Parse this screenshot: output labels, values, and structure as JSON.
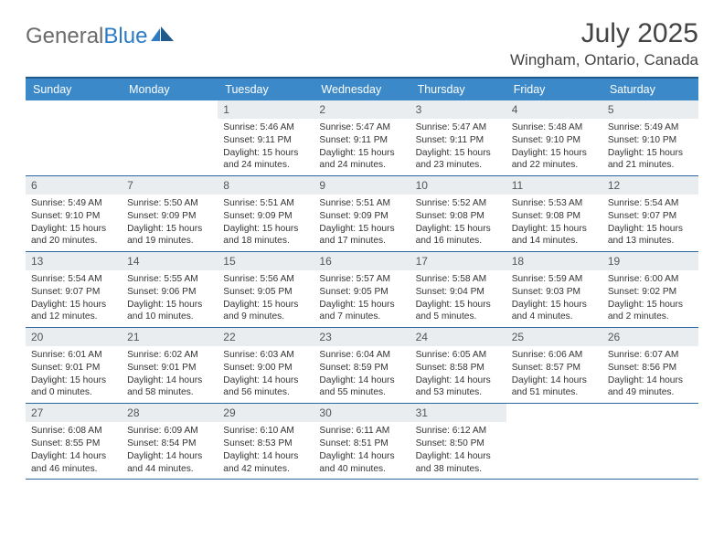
{
  "logo": {
    "text1": "General",
    "text2": "Blue"
  },
  "title": "July 2025",
  "location": "Wingham, Ontario, Canada",
  "colors": {
    "header_bg": "#3b89c9",
    "header_border": "#1f5a8a",
    "row_border": "#2a66a0",
    "daynum_bg": "#e9edef",
    "logo_gray": "#6b6b6b",
    "logo_blue": "#2c7bc4"
  },
  "daysOfWeek": [
    "Sunday",
    "Monday",
    "Tuesday",
    "Wednesday",
    "Thursday",
    "Friday",
    "Saturday"
  ],
  "weeks": [
    [
      {
        "empty": true
      },
      {
        "empty": true
      },
      {
        "n": "1",
        "sr": "Sunrise: 5:46 AM",
        "ss": "Sunset: 9:11 PM",
        "dl": "Daylight: 15 hours and 24 minutes."
      },
      {
        "n": "2",
        "sr": "Sunrise: 5:47 AM",
        "ss": "Sunset: 9:11 PM",
        "dl": "Daylight: 15 hours and 24 minutes."
      },
      {
        "n": "3",
        "sr": "Sunrise: 5:47 AM",
        "ss": "Sunset: 9:11 PM",
        "dl": "Daylight: 15 hours and 23 minutes."
      },
      {
        "n": "4",
        "sr": "Sunrise: 5:48 AM",
        "ss": "Sunset: 9:10 PM",
        "dl": "Daylight: 15 hours and 22 minutes."
      },
      {
        "n": "5",
        "sr": "Sunrise: 5:49 AM",
        "ss": "Sunset: 9:10 PM",
        "dl": "Daylight: 15 hours and 21 minutes."
      }
    ],
    [
      {
        "n": "6",
        "sr": "Sunrise: 5:49 AM",
        "ss": "Sunset: 9:10 PM",
        "dl": "Daylight: 15 hours and 20 minutes."
      },
      {
        "n": "7",
        "sr": "Sunrise: 5:50 AM",
        "ss": "Sunset: 9:09 PM",
        "dl": "Daylight: 15 hours and 19 minutes."
      },
      {
        "n": "8",
        "sr": "Sunrise: 5:51 AM",
        "ss": "Sunset: 9:09 PM",
        "dl": "Daylight: 15 hours and 18 minutes."
      },
      {
        "n": "9",
        "sr": "Sunrise: 5:51 AM",
        "ss": "Sunset: 9:09 PM",
        "dl": "Daylight: 15 hours and 17 minutes."
      },
      {
        "n": "10",
        "sr": "Sunrise: 5:52 AM",
        "ss": "Sunset: 9:08 PM",
        "dl": "Daylight: 15 hours and 16 minutes."
      },
      {
        "n": "11",
        "sr": "Sunrise: 5:53 AM",
        "ss": "Sunset: 9:08 PM",
        "dl": "Daylight: 15 hours and 14 minutes."
      },
      {
        "n": "12",
        "sr": "Sunrise: 5:54 AM",
        "ss": "Sunset: 9:07 PM",
        "dl": "Daylight: 15 hours and 13 minutes."
      }
    ],
    [
      {
        "n": "13",
        "sr": "Sunrise: 5:54 AM",
        "ss": "Sunset: 9:07 PM",
        "dl": "Daylight: 15 hours and 12 minutes."
      },
      {
        "n": "14",
        "sr": "Sunrise: 5:55 AM",
        "ss": "Sunset: 9:06 PM",
        "dl": "Daylight: 15 hours and 10 minutes."
      },
      {
        "n": "15",
        "sr": "Sunrise: 5:56 AM",
        "ss": "Sunset: 9:05 PM",
        "dl": "Daylight: 15 hours and 9 minutes."
      },
      {
        "n": "16",
        "sr": "Sunrise: 5:57 AM",
        "ss": "Sunset: 9:05 PM",
        "dl": "Daylight: 15 hours and 7 minutes."
      },
      {
        "n": "17",
        "sr": "Sunrise: 5:58 AM",
        "ss": "Sunset: 9:04 PM",
        "dl": "Daylight: 15 hours and 5 minutes."
      },
      {
        "n": "18",
        "sr": "Sunrise: 5:59 AM",
        "ss": "Sunset: 9:03 PM",
        "dl": "Daylight: 15 hours and 4 minutes."
      },
      {
        "n": "19",
        "sr": "Sunrise: 6:00 AM",
        "ss": "Sunset: 9:02 PM",
        "dl": "Daylight: 15 hours and 2 minutes."
      }
    ],
    [
      {
        "n": "20",
        "sr": "Sunrise: 6:01 AM",
        "ss": "Sunset: 9:01 PM",
        "dl": "Daylight: 15 hours and 0 minutes."
      },
      {
        "n": "21",
        "sr": "Sunrise: 6:02 AM",
        "ss": "Sunset: 9:01 PM",
        "dl": "Daylight: 14 hours and 58 minutes."
      },
      {
        "n": "22",
        "sr": "Sunrise: 6:03 AM",
        "ss": "Sunset: 9:00 PM",
        "dl": "Daylight: 14 hours and 56 minutes."
      },
      {
        "n": "23",
        "sr": "Sunrise: 6:04 AM",
        "ss": "Sunset: 8:59 PM",
        "dl": "Daylight: 14 hours and 55 minutes."
      },
      {
        "n": "24",
        "sr": "Sunrise: 6:05 AM",
        "ss": "Sunset: 8:58 PM",
        "dl": "Daylight: 14 hours and 53 minutes."
      },
      {
        "n": "25",
        "sr": "Sunrise: 6:06 AM",
        "ss": "Sunset: 8:57 PM",
        "dl": "Daylight: 14 hours and 51 minutes."
      },
      {
        "n": "26",
        "sr": "Sunrise: 6:07 AM",
        "ss": "Sunset: 8:56 PM",
        "dl": "Daylight: 14 hours and 49 minutes."
      }
    ],
    [
      {
        "n": "27",
        "sr": "Sunrise: 6:08 AM",
        "ss": "Sunset: 8:55 PM",
        "dl": "Daylight: 14 hours and 46 minutes."
      },
      {
        "n": "28",
        "sr": "Sunrise: 6:09 AM",
        "ss": "Sunset: 8:54 PM",
        "dl": "Daylight: 14 hours and 44 minutes."
      },
      {
        "n": "29",
        "sr": "Sunrise: 6:10 AM",
        "ss": "Sunset: 8:53 PM",
        "dl": "Daylight: 14 hours and 42 minutes."
      },
      {
        "n": "30",
        "sr": "Sunrise: 6:11 AM",
        "ss": "Sunset: 8:51 PM",
        "dl": "Daylight: 14 hours and 40 minutes."
      },
      {
        "n": "31",
        "sr": "Sunrise: 6:12 AM",
        "ss": "Sunset: 8:50 PM",
        "dl": "Daylight: 14 hours and 38 minutes."
      },
      {
        "empty": true
      },
      {
        "empty": true
      }
    ]
  ]
}
